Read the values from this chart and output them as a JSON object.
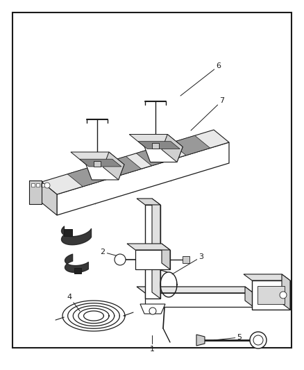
{
  "background_color": "#ffffff",
  "border_color": "#1a1a1a",
  "line_color": "#1a1a1a",
  "figsize": [
    4.38,
    5.33
  ],
  "dpi": 100
}
